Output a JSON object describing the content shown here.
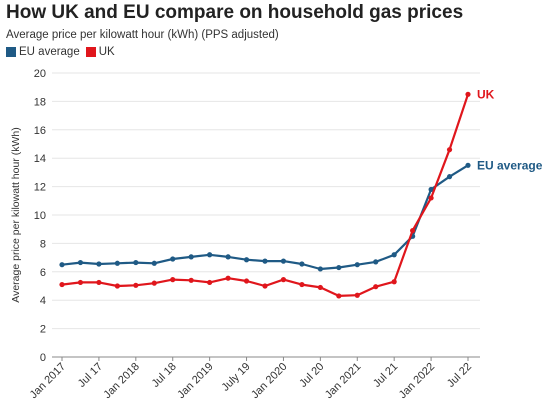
{
  "colors": {
    "eu": "#1f5a85",
    "uk": "#e0161c",
    "grid": "#e6e6e6",
    "axis": "#888888"
  },
  "chart_data": {
    "type": "line",
    "title": "How UK and EU compare on household gas prices",
    "subtitle": "Average price per kilowatt hour (kWh) (PPS adjusted)",
    "ylabel": "Average price per kilowatt hour (kWh)",
    "xlabel": "",
    "ylim": [
      0,
      20
    ],
    "yticks": [
      0,
      2,
      4,
      6,
      8,
      10,
      12,
      14,
      16,
      18,
      20
    ],
    "grid": true,
    "legend_position": "top-left",
    "xticks": [
      "Jan 2017",
      "Jul 17",
      "Jan 2018",
      "Jul 18",
      "Jan 2019",
      "July 19",
      "Jan 2020",
      "Jul 20",
      "Jan 2021",
      "Jul 21",
      "Jan 2022",
      "Jul 22"
    ],
    "x": [
      "Jan 2017",
      "Apr 2017",
      "Jul 2017",
      "Oct 2017",
      "Jan 2018",
      "Apr 2018",
      "Jul 2018",
      "Oct 2018",
      "Jan 2019",
      "Apr 2019",
      "Jul 2019",
      "Oct 2019",
      "Jan 2020",
      "Apr 2020",
      "Jul 2020",
      "Oct 2020",
      "Jan 2021",
      "Apr 2021",
      "Jul 2021",
      "Oct 2021",
      "Jan 2022",
      "Apr 2022",
      "Jul 2022"
    ],
    "series": [
      {
        "name": "EU average",
        "color": "#1f5a85",
        "end_label": "EU average",
        "values": [
          6.5,
          6.65,
          6.55,
          6.6,
          6.65,
          6.6,
          6.9,
          7.05,
          7.2,
          7.05,
          6.85,
          6.75,
          6.75,
          6.55,
          6.2,
          6.3,
          6.5,
          6.7,
          7.2,
          8.5,
          11.8,
          12.7,
          13.5
        ]
      },
      {
        "name": "UK",
        "color": "#e0161c",
        "end_label": "UK",
        "values": [
          5.1,
          5.25,
          5.25,
          5.0,
          5.05,
          5.2,
          5.45,
          5.4,
          5.25,
          5.55,
          5.35,
          5.0,
          5.45,
          5.1,
          4.9,
          4.3,
          4.35,
          4.95,
          5.3,
          8.9,
          11.2,
          14.6,
          18.5
        ]
      }
    ]
  }
}
